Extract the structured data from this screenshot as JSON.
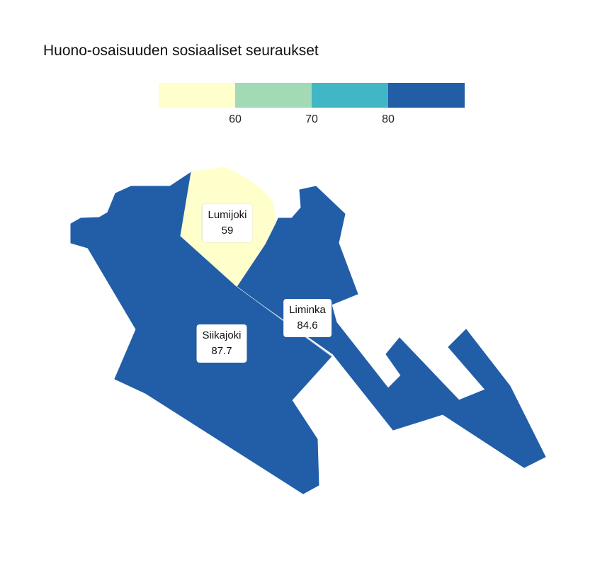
{
  "title": "Huono-osaisuuden sosiaaliset seuraukset",
  "legend": {
    "bins": [
      {
        "color": "#ffffcc"
      },
      {
        "color": "#a1dab4"
      },
      {
        "color": "#41b6c4"
      },
      {
        "color": "#225ea8"
      }
    ],
    "ticks": [
      "60",
      "70",
      "80"
    ]
  },
  "regions": [
    {
      "name": "Lumijoki",
      "value": "59",
      "color": "#ffffcc"
    },
    {
      "name": "Liminka",
      "value": "84.6",
      "color": "#225ea8"
    },
    {
      "name": "Siikajoki",
      "value": "87.7",
      "color": "#225ea8"
    }
  ]
}
